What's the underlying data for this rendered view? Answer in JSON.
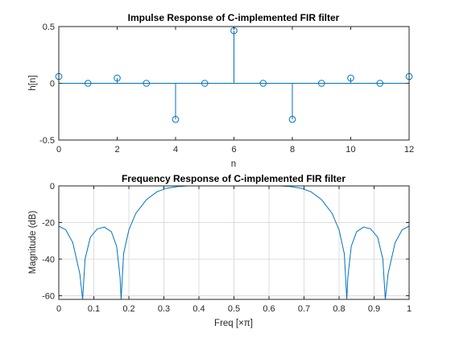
{
  "accent": "#0072bd",
  "chart_data": [
    {
      "type": "stem",
      "title": "Impulse Response of C-implemented FIR filter",
      "xlabel": "n",
      "ylabel": "h[n]",
      "xlim": [
        0,
        12
      ],
      "ylim": [
        -0.5,
        0.5
      ],
      "xticks": [
        "0",
        "2",
        "4",
        "6",
        "8",
        "10",
        "12"
      ],
      "yticks": [
        "0.5",
        "0",
        "-0.5"
      ],
      "grid": false,
      "x": [
        0,
        1,
        2,
        3,
        4,
        5,
        6,
        7,
        8,
        9,
        10,
        11,
        12
      ],
      "y": [
        0.06,
        0,
        0.046,
        0,
        -0.318,
        0,
        0.464,
        0,
        -0.318,
        0,
        0.046,
        0,
        0.06
      ]
    },
    {
      "type": "line",
      "title": "Frequency Response of C-implemented FIR filter",
      "xlabel": "Freq [×π]",
      "ylabel": "Magnitude (dB)",
      "xlim": [
        0,
        1
      ],
      "ylim": [
        -62,
        0
      ],
      "xticks": [
        "0",
        "0.1",
        "0.2",
        "0.3",
        "0.4",
        "0.5",
        "0.6",
        "0.7",
        "0.8",
        "0.9",
        "1"
      ],
      "yticks": [
        "0",
        "-20",
        "-40",
        "-60"
      ],
      "grid": true,
      "x": [
        0,
        0.02,
        0.04,
        0.06,
        0.068,
        0.075,
        0.09,
        0.11,
        0.13,
        0.15,
        0.165,
        0.175,
        0.178,
        0.185,
        0.2,
        0.22,
        0.25,
        0.28,
        0.31,
        0.34,
        0.37,
        0.4,
        0.45,
        0.5,
        0.55,
        0.6,
        0.63,
        0.66,
        0.69,
        0.72,
        0.75,
        0.78,
        0.8,
        0.815,
        0.822,
        0.825,
        0.835,
        0.85,
        0.87,
        0.89,
        0.91,
        0.925,
        0.932,
        0.94,
        0.96,
        0.98,
        1
      ],
      "y": [
        -22,
        -24,
        -31,
        -48,
        -62,
        -40,
        -28,
        -23.5,
        -22.5,
        -25,
        -33,
        -50,
        -62,
        -37,
        -24,
        -15,
        -7.5,
        -3.2,
        -1.2,
        -0.3,
        0,
        0,
        0,
        0,
        0,
        0,
        0,
        -0.3,
        -1.2,
        -3.2,
        -7.5,
        -15,
        -24,
        -37,
        -62,
        -50,
        -33,
        -25,
        -22.5,
        -23.5,
        -28,
        -40,
        -62,
        -48,
        -31,
        -24,
        -22
      ]
    }
  ]
}
